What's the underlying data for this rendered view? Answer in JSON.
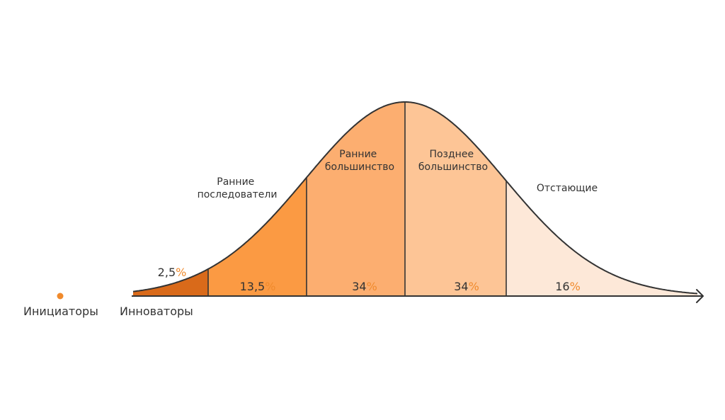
{
  "colors": {
    "curve": "#333333",
    "innovators": "#d96a1a",
    "early_adopters": "#fb9a43",
    "early_majority": "#fcae70",
    "late_majority": "#fdc596",
    "laggards": "#fde8d8",
    "accent": "#f08a2c"
  },
  "segments": [
    {
      "label_lines": [
        "Ранние",
        "последователи"
      ],
      "value": "13,5",
      "unit": "%"
    },
    {
      "label_lines": [
        "Ранние",
        "большинство"
      ],
      "value": "34",
      "unit": "%"
    },
    {
      "label_lines": [
        "Позднее",
        "большинство"
      ],
      "value": "34",
      "unit": "%"
    },
    {
      "label_lines": [
        "Отстающие"
      ],
      "value": "16",
      "unit": "%"
    }
  ],
  "innovators": {
    "value": "2,5",
    "unit": "%",
    "label": "Инноваторы"
  },
  "initiators": {
    "label": "Инициаторы"
  }
}
